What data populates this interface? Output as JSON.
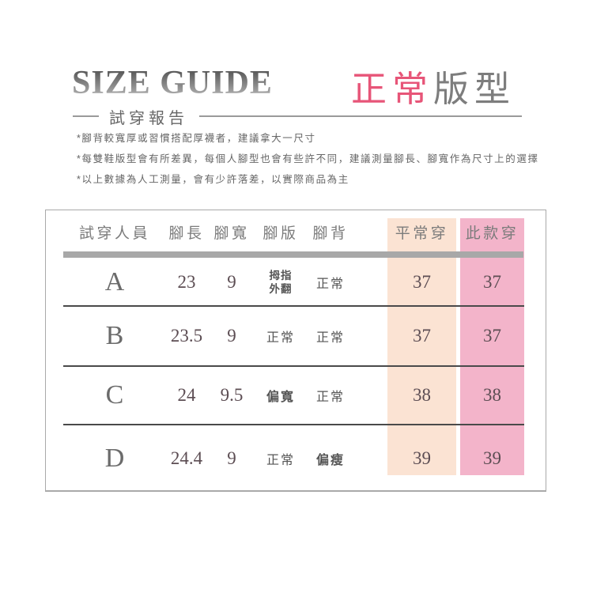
{
  "page": {
    "title": "SIZE GUIDE",
    "subtitle": "試穿報告",
    "fit_type": {
      "highlight": "正常",
      "rest": "版型"
    }
  },
  "notes": [
    "*腳背較寬厚或習慣搭配厚襪者，建議拿大一尺寸",
    "*每雙鞋版型會有所差異，每個人腳型也會有些許不同，建議測量腳長、腳寬作為尺寸上的選擇",
    "*以上數據為人工測量，會有少許落差，以實際商品為主"
  ],
  "table": {
    "columns": [
      "試穿人員",
      "腳長",
      "腳寬",
      "腳版",
      "腳背",
      "平常穿",
      "此款穿"
    ],
    "rows": [
      {
        "person": "A",
        "foot_length": "23",
        "foot_width": "9",
        "foot_shape": "拇指\n外翻",
        "instep": "正常",
        "usual_size": "37",
        "this_size": "37"
      },
      {
        "person": "B",
        "foot_length": "23.5",
        "foot_width": "9",
        "foot_shape": "正常",
        "instep": "正常",
        "usual_size": "37",
        "this_size": "37"
      },
      {
        "person": "C",
        "foot_length": "24",
        "foot_width": "9.5",
        "foot_shape": "偏寬",
        "instep": "正常",
        "usual_size": "38",
        "this_size": "38"
      },
      {
        "person": "D",
        "foot_length": "24.4",
        "foot_width": "9",
        "foot_shape": "正常",
        "instep": "偏瘦",
        "usual_size": "39",
        "this_size": "39"
      }
    ]
  },
  "colors": {
    "accent_pink": "#e75578",
    "usual_column_bg": "#fbe3d3",
    "this_column_bg": "#f3b4ca"
  }
}
